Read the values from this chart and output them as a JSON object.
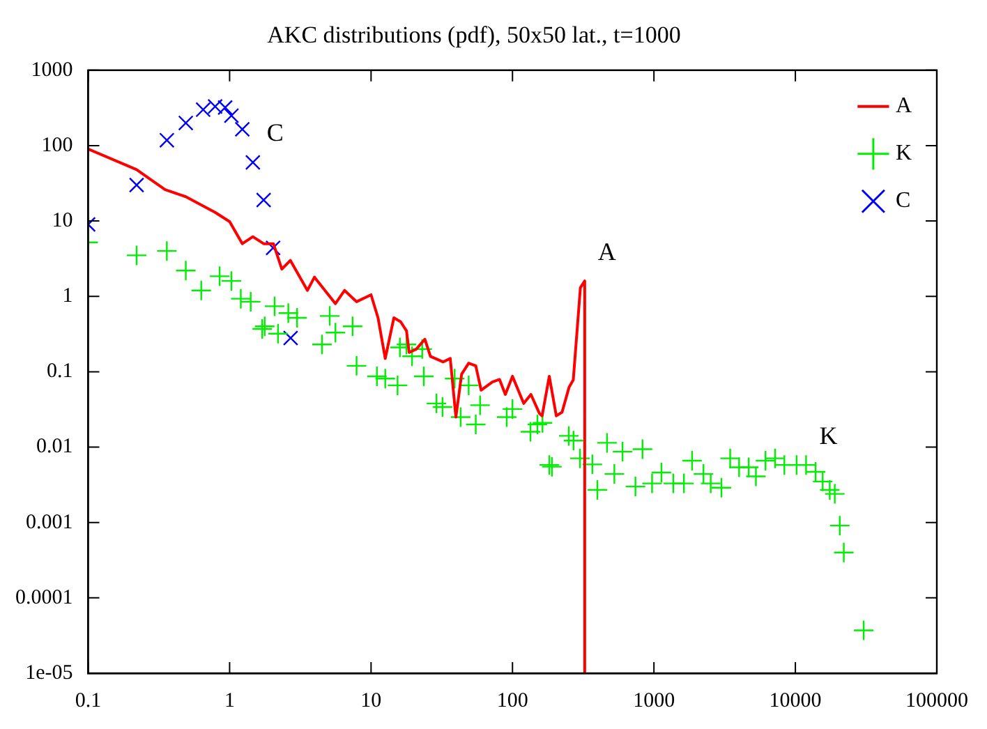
{
  "chart_data": {
    "type": "scatter",
    "title": "AKC distributions (pdf), 50x50 lat., t=1000",
    "log": "xy",
    "grid": false,
    "legend": "top right",
    "xlim": [
      0.1,
      100000
    ],
    "xticks": [
      0.1,
      1,
      10,
      100,
      1000,
      10000,
      100000
    ],
    "ylim": [
      1e-05,
      1000
    ],
    "yticks": [
      {
        "value": 1e-05,
        "label": "1e-05"
      },
      0.0001,
      0.001,
      0.01,
      0.1,
      1,
      10,
      100,
      1000
    ],
    "annotations": [
      {
        "text": "C",
        "x": 1.46,
        "y": 60
      },
      {
        "text": "A",
        "x": 324,
        "y": 1.6
      },
      {
        "text": "K",
        "x": 11900,
        "y": 0.0058
      }
    ],
    "series": [
      {
        "name": "A",
        "type": "line",
        "color": "#ff0000",
        "marker": "none",
        "line_style": "solid",
        "x": [
          0.1,
          0.22,
          0.35,
          0.49,
          0.79,
          1.0,
          1.23,
          1.46,
          1.74,
          2.04,
          2.34,
          2.69,
          3.55,
          3.98,
          5.6,
          6.5,
          7.9,
          10,
          11.2,
          12.6,
          14.5,
          16.2,
          17.8,
          18.6,
          20.9,
          24,
          26.3,
          32.4,
          36.3,
          39.8,
          43.7,
          49,
          55,
          60,
          72,
          81,
          89,
          100,
          120,
          135,
          155,
          162,
          182,
          204,
          224,
          251,
          269,
          302,
          324,
          324
        ],
        "values": [
          90,
          48,
          26,
          21,
          13,
          9.8,
          5.0,
          6.2,
          5.0,
          5.0,
          2.3,
          3.0,
          1.2,
          1.8,
          0.8,
          1.2,
          0.85,
          1.05,
          0.52,
          0.15,
          0.52,
          0.46,
          0.35,
          0.18,
          0.2,
          0.27,
          0.16,
          0.135,
          0.15,
          0.025,
          0.093,
          0.13,
          0.12,
          0.057,
          0.073,
          0.079,
          0.05,
          0.087,
          0.038,
          0.05,
          0.028,
          0.026,
          0.087,
          0.026,
          0.029,
          0.062,
          0.078,
          1.3,
          1.6,
          1e-05
        ]
      },
      {
        "name": "K",
        "type": "scatter",
        "color": "#00ee00",
        "marker": "cross",
        "x": [
          0.1,
          0.22,
          0.36,
          0.49,
          0.63,
          0.85,
          1.03,
          1.2,
          1.41,
          1.7,
          1.77,
          2.08,
          2.2,
          2.6,
          3.0,
          4.5,
          5.1,
          5.6,
          7.4,
          7.9,
          11,
          12.6,
          15.4,
          16,
          17.8,
          19.5,
          23,
          23.6,
          29,
          32,
          39,
          43,
          49,
          55,
          59,
          91,
          100,
          134,
          150,
          163,
          182,
          190,
          250,
          270,
          300,
          367,
          398,
          466,
          525,
          600,
          740,
          830,
          970,
          1130,
          1370,
          1630,
          1860,
          2240,
          2520,
          3000,
          3460,
          4000,
          4680,
          5260,
          6150,
          7190,
          8360,
          10200,
          11900,
          13900,
          15600,
          17500,
          19000,
          20600,
          22000,
          30400
        ],
        "values": [
          5.2,
          3.5,
          4.0,
          2.2,
          1.2,
          1.85,
          1.6,
          0.93,
          0.85,
          0.37,
          0.4,
          0.74,
          0.32,
          0.6,
          0.52,
          0.23,
          0.55,
          0.33,
          0.4,
          0.12,
          0.087,
          0.081,
          0.066,
          0.21,
          0.23,
          0.16,
          0.2,
          0.087,
          0.038,
          0.034,
          0.081,
          0.025,
          0.066,
          0.02,
          0.036,
          0.025,
          0.032,
          0.016,
          0.02,
          0.021,
          0.0058,
          0.0055,
          0.0141,
          0.0122,
          0.0071,
          0.0059,
          0.0027,
          0.0114,
          0.0044,
          0.0087,
          0.003,
          0.0094,
          0.0033,
          0.0046,
          0.0033,
          0.0033,
          0.0066,
          0.0044,
          0.0033,
          0.0029,
          0.0071,
          0.0054,
          0.0054,
          0.0041,
          0.0066,
          0.0071,
          0.0058,
          0.0058,
          0.0058,
          0.0047,
          0.0035,
          0.0027,
          0.0024,
          0.00091,
          0.0004,
          3.7e-05
        ]
      },
      {
        "name": "C",
        "type": "scatter",
        "color": "#0000ff",
        "marker": "x",
        "x": [
          0.1,
          0.22,
          0.36,
          0.49,
          0.65,
          0.79,
          0.93,
          1.03,
          1.23,
          1.46,
          1.74,
          2.03,
          2.7
        ],
        "values": [
          9,
          30,
          118,
          200,
          300,
          330,
          320,
          250,
          165,
          60,
          19,
          4.4,
          0.28
        ]
      }
    ]
  }
}
